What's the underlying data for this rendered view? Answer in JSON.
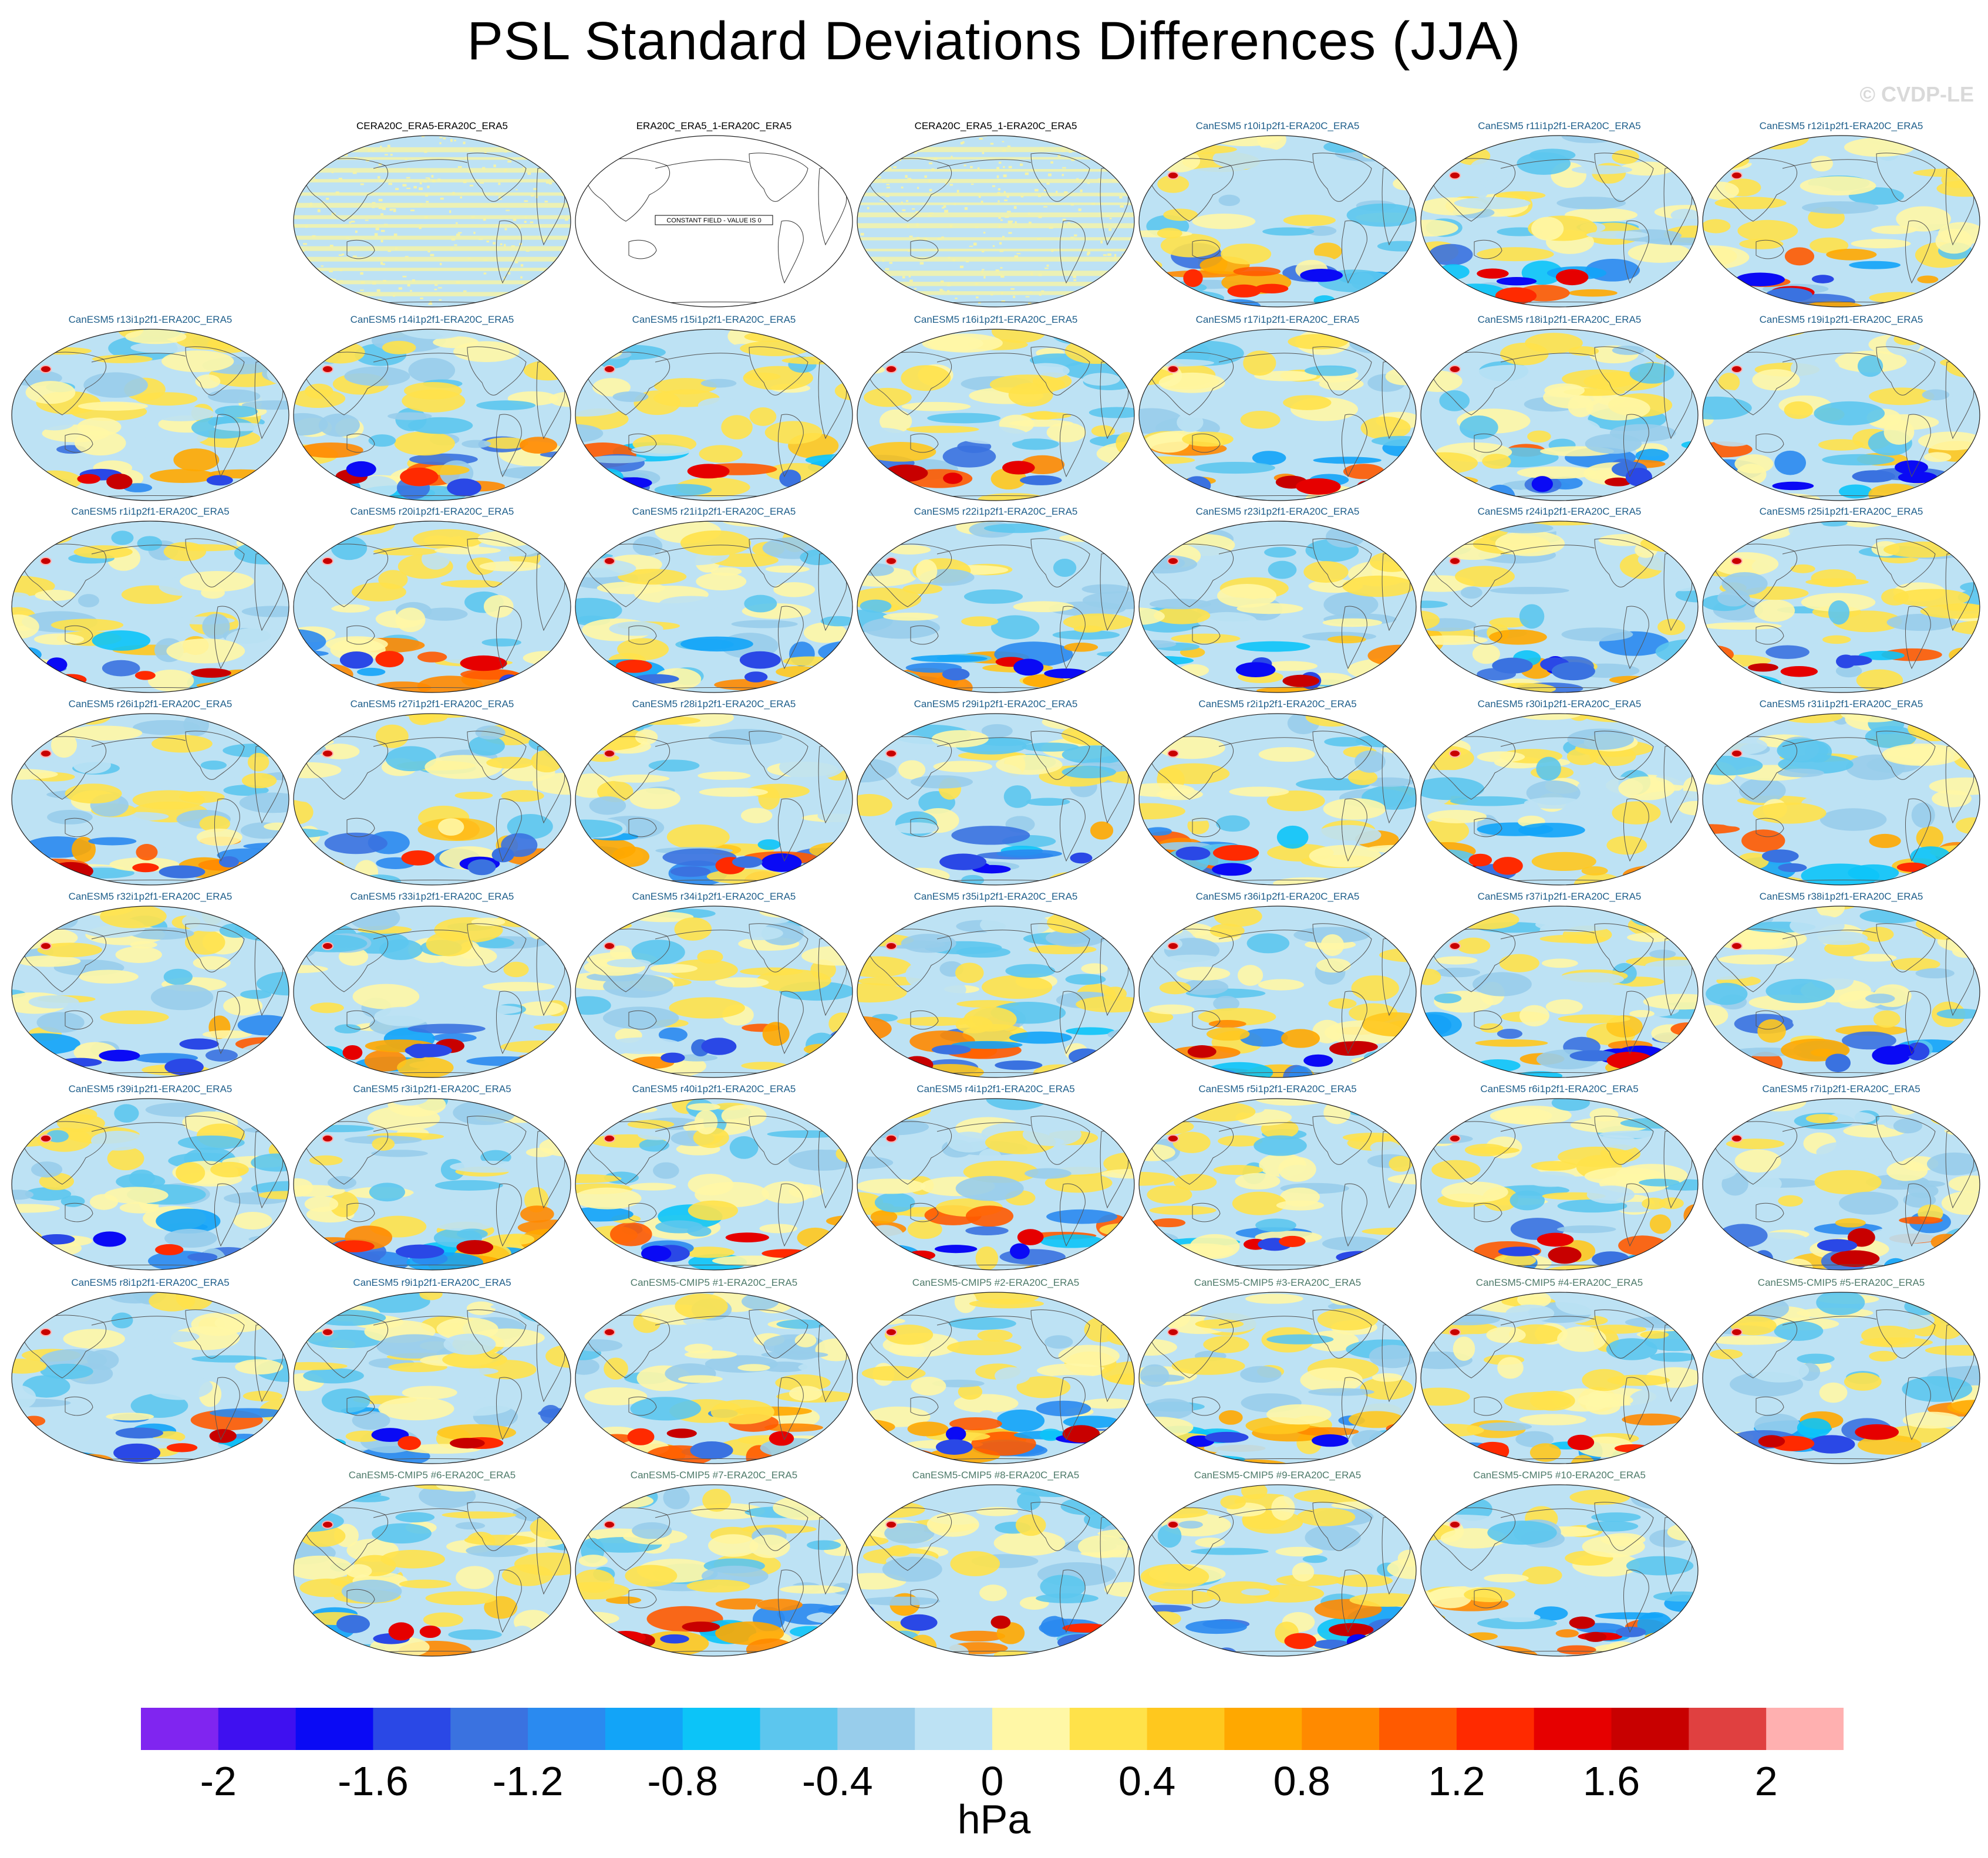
{
  "title": "PSL Standard Deviations Differences (JJA)",
  "watermark": "© CVDP-LE",
  "units": "hPa",
  "colorbar": {
    "colors": [
      "#8025f0",
      "#3f10f0",
      "#0a0af5",
      "#2a48e6",
      "#3a72e0",
      "#2a8af0",
      "#12a4f8",
      "#0cc4f8",
      "#5cc6ee",
      "#98cdeb",
      "#bde2f4",
      "#fff7a6",
      "#ffe24a",
      "#ffc81e",
      "#ffa800",
      "#ff8a00",
      "#ff5a00",
      "#ff2a00",
      "#e60000",
      "#c80000",
      "#e04040",
      "#ffb0b0"
    ],
    "tick_labels": [
      "-2",
      "-1.6",
      "-1.2",
      "-0.8",
      "-0.4",
      "0",
      "0.4",
      "0.8",
      "1.2",
      "1.6",
      "2"
    ]
  },
  "panels": [
    {
      "label": "CERA20C_ERA5-ERA20C_ERA5",
      "style": "black",
      "kind": "noisy"
    },
    {
      "label": "ERA20C_ERA5_1-ERA20C_ERA5",
      "style": "black",
      "kind": "constant",
      "const_text": "CONSTANT FIELD - VALUE IS 0"
    },
    {
      "label": "CERA20C_ERA5_1-ERA20C_ERA5",
      "style": "black",
      "kind": "noisy"
    },
    {
      "label": "CanESM5 r10i1p2f1-ERA20C_ERA5",
      "style": "blue",
      "kind": "field"
    },
    {
      "label": "CanESM5 r11i1p2f1-ERA20C_ERA5",
      "style": "blue",
      "kind": "field"
    },
    {
      "label": "CanESM5 r12i1p2f1-ERA20C_ERA5",
      "style": "blue",
      "kind": "field"
    },
    {
      "label": "CanESM5 r13i1p2f1-ERA20C_ERA5",
      "style": "blue",
      "kind": "field"
    },
    {
      "label": "CanESM5 r14i1p2f1-ERA20C_ERA5",
      "style": "blue",
      "kind": "field"
    },
    {
      "label": "CanESM5 r15i1p2f1-ERA20C_ERA5",
      "style": "blue",
      "kind": "field"
    },
    {
      "label": "CanESM5 r16i1p2f1-ERA20C_ERA5",
      "style": "blue",
      "kind": "field"
    },
    {
      "label": "CanESM5 r17i1p2f1-ERA20C_ERA5",
      "style": "blue",
      "kind": "field"
    },
    {
      "label": "CanESM5 r18i1p2f1-ERA20C_ERA5",
      "style": "blue",
      "kind": "field"
    },
    {
      "label": "CanESM5 r19i1p2f1-ERA20C_ERA5",
      "style": "blue",
      "kind": "field"
    },
    {
      "label": "CanESM5 r1i1p2f1-ERA20C_ERA5",
      "style": "blue",
      "kind": "field"
    },
    {
      "label": "CanESM5 r20i1p2f1-ERA20C_ERA5",
      "style": "blue",
      "kind": "field"
    },
    {
      "label": "CanESM5 r21i1p2f1-ERA20C_ERA5",
      "style": "blue",
      "kind": "field"
    },
    {
      "label": "CanESM5 r22i1p2f1-ERA20C_ERA5",
      "style": "blue",
      "kind": "field"
    },
    {
      "label": "CanESM5 r23i1p2f1-ERA20C_ERA5",
      "style": "blue",
      "kind": "field"
    },
    {
      "label": "CanESM5 r24i1p2f1-ERA20C_ERA5",
      "style": "blue",
      "kind": "field"
    },
    {
      "label": "CanESM5 r25i1p2f1-ERA20C_ERA5",
      "style": "blue",
      "kind": "field"
    },
    {
      "label": "CanESM5 r26i1p2f1-ERA20C_ERA5",
      "style": "blue",
      "kind": "field"
    },
    {
      "label": "CanESM5 r27i1p2f1-ERA20C_ERA5",
      "style": "blue",
      "kind": "field"
    },
    {
      "label": "CanESM5 r28i1p2f1-ERA20C_ERA5",
      "style": "blue",
      "kind": "field"
    },
    {
      "label": "CanESM5 r29i1p2f1-ERA20C_ERA5",
      "style": "blue",
      "kind": "field"
    },
    {
      "label": "CanESM5 r2i1p2f1-ERA20C_ERA5",
      "style": "blue",
      "kind": "field"
    },
    {
      "label": "CanESM5 r30i1p2f1-ERA20C_ERA5",
      "style": "blue",
      "kind": "field"
    },
    {
      "label": "CanESM5 r31i1p2f1-ERA20C_ERA5",
      "style": "blue",
      "kind": "field"
    },
    {
      "label": "CanESM5 r32i1p2f1-ERA20C_ERA5",
      "style": "blue",
      "kind": "field"
    },
    {
      "label": "CanESM5 r33i1p2f1-ERA20C_ERA5",
      "style": "blue",
      "kind": "field"
    },
    {
      "label": "CanESM5 r34i1p2f1-ERA20C_ERA5",
      "style": "blue",
      "kind": "field"
    },
    {
      "label": "CanESM5 r35i1p2f1-ERA20C_ERA5",
      "style": "blue",
      "kind": "field"
    },
    {
      "label": "CanESM5 r36i1p2f1-ERA20C_ERA5",
      "style": "blue",
      "kind": "field"
    },
    {
      "label": "CanESM5 r37i1p2f1-ERA20C_ERA5",
      "style": "blue",
      "kind": "field"
    },
    {
      "label": "CanESM5 r38i1p2f1-ERA20C_ERA5",
      "style": "blue",
      "kind": "field"
    },
    {
      "label": "CanESM5 r39i1p2f1-ERA20C_ERA5",
      "style": "blue",
      "kind": "field"
    },
    {
      "label": "CanESM5 r3i1p2f1-ERA20C_ERA5",
      "style": "blue",
      "kind": "field"
    },
    {
      "label": "CanESM5 r40i1p2f1-ERA20C_ERA5",
      "style": "blue",
      "kind": "field"
    },
    {
      "label": "CanESM5 r4i1p2f1-ERA20C_ERA5",
      "style": "blue",
      "kind": "field"
    },
    {
      "label": "CanESM5 r5i1p2f1-ERA20C_ERA5",
      "style": "blue",
      "kind": "field"
    },
    {
      "label": "CanESM5 r6i1p2f1-ERA20C_ERA5",
      "style": "blue",
      "kind": "field"
    },
    {
      "label": "CanESM5 r7i1p2f1-ERA20C_ERA5",
      "style": "blue",
      "kind": "field"
    },
    {
      "label": "CanESM5 r8i1p2f1-ERA20C_ERA5",
      "style": "blue",
      "kind": "field"
    },
    {
      "label": "CanESM5 r9i1p2f1-ERA20C_ERA5",
      "style": "blue",
      "kind": "field"
    },
    {
      "label": "CanESM5-CMIP5 #1-ERA20C_ERA5",
      "style": "green",
      "kind": "field"
    },
    {
      "label": "CanESM5-CMIP5 #2-ERA20C_ERA5",
      "style": "green",
      "kind": "field"
    },
    {
      "label": "CanESM5-CMIP5 #3-ERA20C_ERA5",
      "style": "green",
      "kind": "field"
    },
    {
      "label": "CanESM5-CMIP5 #4-ERA20C_ERA5",
      "style": "green",
      "kind": "field"
    },
    {
      "label": "CanESM5-CMIP5 #5-ERA20C_ERA5",
      "style": "green",
      "kind": "field"
    },
    {
      "label": "CanESM5-CMIP5 #6-ERA20C_ERA5",
      "style": "green",
      "kind": "field"
    },
    {
      "label": "CanESM5-CMIP5 #7-ERA20C_ERA5",
      "style": "green",
      "kind": "field"
    },
    {
      "label": "CanESM5-CMIP5 #8-ERA20C_ERA5",
      "style": "green",
      "kind": "field"
    },
    {
      "label": "CanESM5-CMIP5 #9-ERA20C_ERA5",
      "style": "green",
      "kind": "field"
    },
    {
      "label": "CanESM5-CMIP5 #10-ERA20C_ERA5",
      "style": "green",
      "kind": "field"
    }
  ]
}
